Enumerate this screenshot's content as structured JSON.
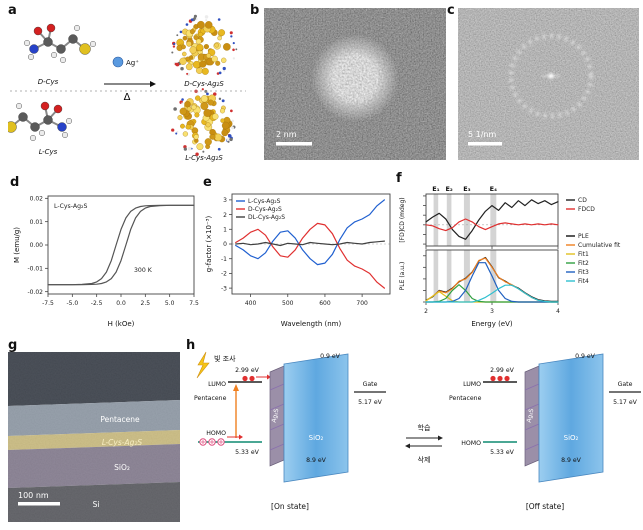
{
  "figure": {
    "panel_labels": {
      "a": "a",
      "b": "b",
      "c": "c",
      "d": "d",
      "e": "e",
      "f": "f",
      "g": "g",
      "h": "h"
    }
  },
  "panel_a": {
    "top_molecule": "D-Cys",
    "bottom_molecule": "L-Cys",
    "reagent": "Ag⁺",
    "delta": "Δ",
    "top_product": "D-Cys-Ag₂S",
    "bottom_product": "L-Cys-Ag₂S",
    "atom_colors": {
      "C": "#5a5a5a",
      "O": "#d42020",
      "N": "#2742c8",
      "S": "#e0c020",
      "H": "#ececec",
      "Ag": "#5a9ae0"
    }
  },
  "panel_b": {
    "scale_label": "2 nm"
  },
  "panel_c": {
    "scale_label": "5 1/nm"
  },
  "panel_g": {
    "layers": [
      "Pentacene",
      "L-Cys-Ag₂S",
      "SiO₂",
      "Si"
    ],
    "scale_label": "100 nm"
  },
  "panel_h": {
    "light": "빛 조사",
    "lumo": "LUMO",
    "homo": "HOMO",
    "pentacene": "Pentacene",
    "lumo_energy": "2.99 eV",
    "homo_energy": "5.33 eV",
    "ag2s": "Ag₂S",
    "sio2": "SiO₂",
    "sio2_energy": "8.9 eV",
    "barrier_energy": "0.9 eV",
    "gate": "Gate",
    "gate_energy": "5.17 eV",
    "learn": "학습",
    "erase": "삭제",
    "on_state": "[On state]",
    "off_state": "[Off state]"
  },
  "chart_data": [
    {
      "id": "d",
      "type": "line",
      "xlabel": "H (kOe)",
      "ylabel": "M (emu/g)",
      "annotations": [
        "L-Cys-Ag₂S",
        "300 K"
      ],
      "xlim": [
        -7.5,
        7.5
      ],
      "ylim": [
        -0.021,
        0.021
      ],
      "xticks": [
        -7.5,
        -5,
        -2.5,
        0,
        2.5,
        5,
        7.5
      ],
      "yticks": [
        -0.02,
        -0.01,
        0,
        0.01,
        0.02
      ],
      "series": [
        {
          "name": "sweep-up",
          "color": "#555555",
          "x": [
            -7.5,
            -6,
            -5,
            -4,
            -3,
            -2.5,
            -2,
            -1.5,
            -1,
            -0.5,
            0,
            0.5,
            1,
            1.5,
            2,
            2.5,
            3,
            4,
            5,
            6,
            7.5
          ],
          "y": [
            -0.017,
            -0.017,
            -0.017,
            -0.017,
            -0.0169,
            -0.0168,
            -0.0165,
            -0.0158,
            -0.0144,
            -0.0116,
            -0.0067,
            0,
            0.0067,
            0.0116,
            0.0144,
            0.0158,
            0.0165,
            0.0169,
            0.017,
            0.017,
            0.017
          ]
        },
        {
          "name": "sweep-down",
          "color": "#555555",
          "x": [
            -7.5,
            -6,
            -5,
            -4,
            -3,
            -2.5,
            -2,
            -1.5,
            -1,
            -0.5,
            0,
            0.5,
            1,
            1.5,
            2,
            2.5,
            3,
            4,
            5,
            6,
            7.5
          ],
          "y": [
            -0.017,
            -0.017,
            -0.017,
            -0.0169,
            -0.0165,
            -0.0158,
            -0.0144,
            -0.0116,
            -0.0067,
            0,
            0.0067,
            0.0116,
            0.0144,
            0.0158,
            0.0165,
            0.0168,
            0.0169,
            0.017,
            0.017,
            0.017,
            0.017
          ]
        }
      ]
    },
    {
      "id": "e",
      "type": "line",
      "xlabel": "Wavelength (nm)",
      "ylabel": "g-factor (×10⁻³)",
      "xlim": [
        350,
        775
      ],
      "ylim": [
        -3.4,
        3.4
      ],
      "xticks": [
        400,
        500,
        600,
        700
      ],
      "yticks": [
        -3,
        -2,
        -1,
        0,
        1,
        2,
        3
      ],
      "legend": [
        "L-Cys-Ag₂S",
        "D-Cys-Ag₂S",
        "DL-Cys-Ag₂S"
      ],
      "x": [
        360,
        380,
        400,
        420,
        440,
        460,
        480,
        500,
        520,
        540,
        560,
        580,
        600,
        620,
        640,
        660,
        680,
        700,
        720,
        740,
        760
      ],
      "series": [
        {
          "name": "L-Cys-Ag2S",
          "color": "#2060d0",
          "y": [
            -0.1,
            -0.4,
            -0.8,
            -1.0,
            -0.6,
            0.2,
            0.8,
            0.9,
            0.4,
            -0.4,
            -1.0,
            -1.4,
            -1.3,
            -0.7,
            0.3,
            1.1,
            1.5,
            1.7,
            2.0,
            2.6,
            3.0
          ]
        },
        {
          "name": "D-Cys-Ag2S",
          "color": "#e03030",
          "y": [
            0.1,
            0.4,
            0.8,
            1.0,
            0.6,
            -0.2,
            -0.8,
            -0.9,
            -0.4,
            0.4,
            1.0,
            1.4,
            1.3,
            0.7,
            -0.3,
            -1.1,
            -1.5,
            -1.7,
            -2.0,
            -2.6,
            -3.0
          ]
        },
        {
          "name": "DL-Cys-Ag2S",
          "color": "#404040",
          "y": [
            0.0,
            0.05,
            -0.05,
            0.0,
            0.1,
            0.0,
            -0.1,
            0.05,
            0.0,
            -0.05,
            0.1,
            0.05,
            0.0,
            -0.05,
            0.0,
            0.1,
            0.05,
            0.0,
            0.1,
            0.15,
            0.2
          ]
        }
      ]
    },
    {
      "id": "f_top",
      "type": "line",
      "ylabel": "[FD]CD (mdeg)",
      "xlim": [
        2,
        4
      ],
      "ylim": [
        -2.2,
        3.2
      ],
      "xticks": [
        2,
        3,
        4
      ],
      "yticks": [
        -2,
        -1,
        0,
        1,
        2,
        3
      ],
      "legend": [
        "CD",
        "FDCD"
      ],
      "bands": [
        {
          "label": "E₁",
          "x": 2.15,
          "width": 0.07
        },
        {
          "label": "E₂",
          "x": 2.35,
          "width": 0.07
        },
        {
          "label": "E₃",
          "x": 2.62,
          "width": 0.09
        },
        {
          "label": "E₄",
          "x": 3.02,
          "width": 0.09
        }
      ],
      "x": [
        2,
        2.1,
        2.2,
        2.3,
        2.4,
        2.5,
        2.6,
        2.7,
        2.8,
        2.9,
        3,
        3.1,
        3.2,
        3.3,
        3.4,
        3.5,
        3.6,
        3.7,
        3.8,
        3.9,
        4
      ],
      "series": [
        {
          "name": "CD",
          "color": "#222222",
          "y": [
            0.3,
            0.8,
            1.2,
            0.6,
            -0.5,
            -1.2,
            -1.5,
            -0.6,
            0.5,
            1.4,
            2.0,
            1.5,
            2.3,
            1.8,
            2.5,
            2.0,
            2.6,
            2.2,
            2.5,
            2.1,
            2.4
          ]
        },
        {
          "name": "FDCD",
          "color": "#e03030",
          "y": [
            0.0,
            -0.1,
            -0.4,
            -0.6,
            -0.3,
            0.3,
            0.6,
            0.3,
            -0.2,
            -0.5,
            -0.2,
            0.1,
            0.2,
            0.1,
            0.0,
            0.1,
            0.0,
            0.1,
            0.0,
            0.1,
            0.0
          ]
        }
      ]
    },
    {
      "id": "f_bottom",
      "type": "line",
      "xlabel": "Energy (eV)",
      "ylabel": "PLE (a.u.)",
      "xlim": [
        2,
        4
      ],
      "ylim": [
        0,
        0.9
      ],
      "xticks": [
        2,
        3,
        4
      ],
      "yticks": [
        0,
        0.2,
        0.4,
        0.6,
        0.8
      ],
      "legend": [
        "PLE",
        "Cumulative fit",
        "Fit1",
        "Fit2",
        "Fit3",
        "Fit4"
      ],
      "bands": [
        {
          "x": 2.15,
          "width": 0.07
        },
        {
          "x": 2.35,
          "width": 0.07
        },
        {
          "x": 2.62,
          "width": 0.09
        },
        {
          "x": 3.02,
          "width": 0.09
        }
      ],
      "x": [
        2,
        2.1,
        2.2,
        2.3,
        2.4,
        2.5,
        2.6,
        2.7,
        2.8,
        2.9,
        3,
        3.1,
        3.2,
        3.3,
        3.4,
        3.5,
        3.6,
        3.7,
        3.8,
        3.9,
        4
      ],
      "series": [
        {
          "name": "PLE",
          "color": "#111111",
          "y": [
            0.03,
            0.09,
            0.2,
            0.17,
            0.24,
            0.35,
            0.41,
            0.52,
            0.71,
            0.77,
            0.61,
            0.42,
            0.36,
            0.29,
            0.24,
            0.16,
            0.09,
            0.04,
            0.02,
            0.01,
            0.01
          ]
        },
        {
          "name": "Cumulative fit",
          "color": "#f08020",
          "y": [
            0.02,
            0.1,
            0.19,
            0.16,
            0.23,
            0.36,
            0.4,
            0.51,
            0.72,
            0.76,
            0.6,
            0.43,
            0.35,
            0.3,
            0.23,
            0.15,
            0.08,
            0.03,
            0.01,
            0.0,
            0.0
          ]
        },
        {
          "name": "Fit1",
          "color": "#e0c020",
          "y": [
            0.02,
            0.1,
            0.18,
            0.1,
            0.02,
            0.0,
            0,
            0,
            0,
            0,
            0,
            0,
            0,
            0,
            0,
            0,
            0,
            0,
            0,
            0,
            0
          ]
        },
        {
          "name": "Fit2",
          "color": "#30a040",
          "y": [
            0,
            0,
            0.01,
            0.06,
            0.2,
            0.3,
            0.2,
            0.06,
            0.01,
            0,
            0,
            0,
            0,
            0,
            0,
            0,
            0,
            0,
            0,
            0,
            0
          ]
        },
        {
          "name": "Fit3",
          "color": "#2060c0",
          "y": [
            0,
            0,
            0,
            0,
            0.01,
            0.06,
            0.2,
            0.45,
            0.68,
            0.68,
            0.45,
            0.2,
            0.06,
            0.01,
            0,
            0,
            0,
            0,
            0,
            0,
            0
          ]
        },
        {
          "name": "Fit4",
          "color": "#30c0d0",
          "y": [
            0,
            0,
            0,
            0,
            0,
            0,
            0,
            0,
            0.03,
            0.08,
            0.15,
            0.23,
            0.29,
            0.29,
            0.23,
            0.15,
            0.08,
            0.03,
            0.01,
            0,
            0
          ]
        }
      ]
    }
  ]
}
